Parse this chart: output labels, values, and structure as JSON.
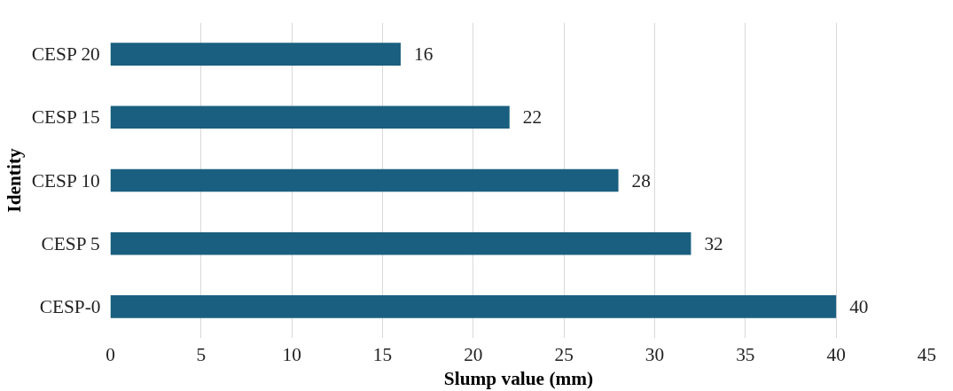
{
  "chart_data": {
    "type": "bar",
    "orientation": "horizontal",
    "xlabel": "Slump value (mm)",
    "ylabel": "Identity",
    "categories": [
      "CESP 20",
      "CESP 15",
      "CESP 10",
      "CESP 5",
      "CESP-0"
    ],
    "values": [
      16,
      22,
      28,
      32,
      40
    ],
    "color": "#1a5f7f",
    "xlim": [
      0,
      45
    ],
    "xticks": [
      0,
      5,
      10,
      15,
      20,
      25,
      30,
      35,
      40,
      45
    ],
    "grid": "x",
    "data_labels": true
  }
}
